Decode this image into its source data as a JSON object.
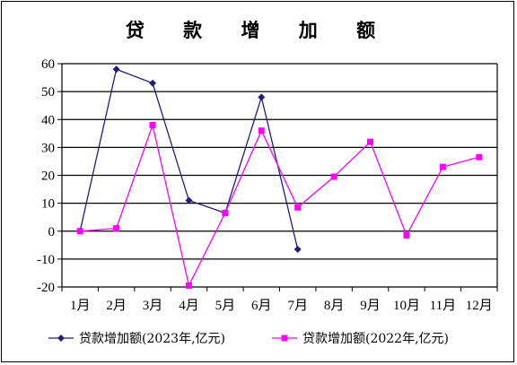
{
  "chart_data": {
    "type": "line",
    "title": "贷 款 增 加 额",
    "categories": [
      "1月",
      "2月",
      "3月",
      "4月",
      "5月",
      "6月",
      "7月",
      "8月",
      "9月",
      "10月",
      "11月",
      "12月"
    ],
    "ylim": [
      -20,
      60
    ],
    "yticks": [
      -20,
      -10,
      0,
      10,
      20,
      30,
      40,
      50,
      60
    ],
    "grid": true,
    "legend_position": "bottom",
    "series": [
      {
        "name": "贷款增加额(2023年,亿元)",
        "color": "#1f1f7a",
        "marker": "diamond",
        "values": [
          0,
          58,
          53,
          11,
          6.5,
          48,
          -6.5,
          null,
          null,
          null,
          null,
          null
        ]
      },
      {
        "name": "贷款增加额(2022年,亿元)",
        "color": "#ff00ff",
        "marker": "square",
        "values": [
          0,
          1,
          38,
          -19.5,
          6.5,
          36,
          8.5,
          19.5,
          32,
          -1.5,
          23,
          26.5
        ]
      }
    ]
  }
}
